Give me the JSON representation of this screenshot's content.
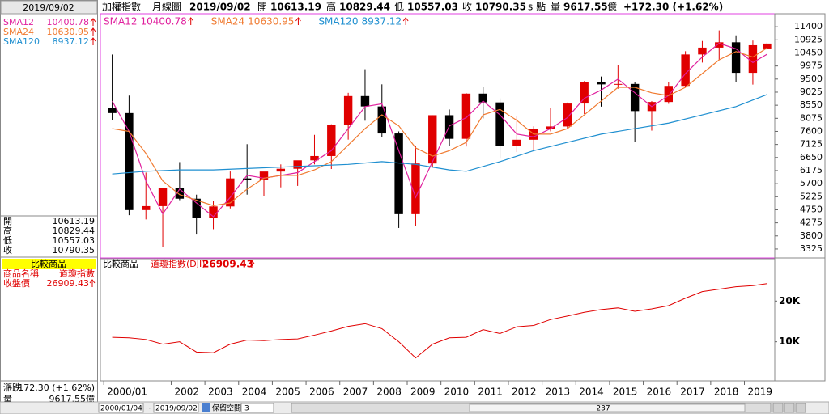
{
  "header": {
    "product": "加權指數",
    "period": "月線圖",
    "date": "2019/09/02",
    "open_label": "開",
    "open": 10613.19,
    "high_label": "高",
    "high": 10829.44,
    "low_label": "低",
    "low": 10557.03,
    "close_label": "收",
    "close": 10790.35,
    "unit": "s 點",
    "volume_label": "量",
    "volume": 9617.55,
    "volume_unit": "億",
    "change": "+172.30 (+1.62%)"
  },
  "sidebar": {
    "change_label": "漲跌",
    "change": "172.30 (+1.62%)",
    "volume_text": "9617.55億",
    "compare_title": "比較商品",
    "name_label": "商品名稱",
    "name": "道瓊指數",
    "close_label": "收盤價"
  },
  "statusbar": {
    "start": "2000/01/04",
    "sep": "~",
    "end": "2019/09/02",
    "reserve_label": "保留空間",
    "reserve": 3,
    "count": 237
  },
  "chart_data": [
    {
      "type": "candlestick",
      "x": [
        2000.25,
        2000.75,
        2001.25,
        2001.75,
        2002.25,
        2002.75,
        2003.25,
        2003.75,
        2004.25,
        2004.75,
        2005.25,
        2005.75,
        2006.25,
        2006.75,
        2007.25,
        2007.75,
        2008.25,
        2008.75,
        2009.25,
        2009.75,
        2010.25,
        2010.75,
        2011.25,
        2011.75,
        2012.25,
        2012.75,
        2013.25,
        2013.75,
        2014.25,
        2014.75,
        2015.25,
        2015.75,
        2016.25,
        2016.75,
        2017.25,
        2017.75,
        2018.25,
        2018.75,
        2019.25,
        2019.67
      ],
      "open": [
        8448,
        8265,
        4739,
        4883,
        5551,
        5153,
        4452,
        4872,
        5890,
        5840,
        6140,
        6241,
        6548,
        6704,
        7823,
        8883,
        8506,
        7524,
        4591,
        6432,
        8188,
        7330,
        8972,
        8652,
        7072,
        7296,
        7699,
        7778,
        8611,
        9393,
        9307,
        9323,
        8338,
        8667,
        9253,
        10395,
        10643,
        10837,
        9727,
        10613.19
      ],
      "high": [
        10393,
        8900,
        6104,
        5551,
        6484,
        5300,
        5080,
        6142,
        7135,
        6100,
        6400,
        6540,
        7474,
        7858,
        9000,
        9859,
        9309,
        7600,
        7084,
        8188,
        8395,
        8990,
        9220,
        8800,
        8170,
        7782,
        8440,
        8647,
        9427,
        9593,
        10014,
        9400,
        8700,
        9400,
        10513,
        10884,
        11270,
        11089,
        10900,
        10829.44
      ],
      "low": [
        8000,
        4555,
        4400,
        3411,
        5100,
        3850,
        4044,
        4800,
        5300,
        5255,
        5565,
        5618,
        6400,
        6232,
        7300,
        7987,
        7384,
        4089,
        4164,
        6300,
        7080,
        7050,
        8070,
        6609,
        6850,
        6900,
        7600,
        7700,
        8230,
        8500,
        9150,
        7203,
        7627,
        8600,
        9200,
        10100,
        10189,
        9400,
        9300,
        10557.03
      ],
      "close": [
        8265,
        4739,
        4883,
        5551,
        5153,
        4452,
        4872,
        5890,
        5840,
        6140,
        6241,
        6548,
        6704,
        7823,
        8883,
        8506,
        7524,
        4591,
        6432,
        8188,
        7330,
        8972,
        8652,
        7072,
        7296,
        7699,
        7778,
        8611,
        9393,
        9307,
        9323,
        8338,
        8667,
        9253,
        10395,
        10643,
        10837,
        9727,
        10730,
        10790.35
      ],
      "up_color": "#e00000",
      "down_color": "#000000",
      "overlays": [
        {
          "name": "SMA12",
          "color": "#e0209e",
          "values": [
            8700,
            7600,
            5800,
            4600,
            5500,
            5000,
            4500,
            5200,
            6000,
            5900,
            6000,
            6100,
            6500,
            6900,
            7700,
            8500,
            8600,
            6900,
            5200,
            6500,
            7800,
            8100,
            8700,
            8200,
            7500,
            7400,
            7700,
            8100,
            8800,
            9100,
            9500,
            9000,
            8500,
            8900,
            9700,
            10300,
            10800,
            10600,
            10100,
            10400.78
          ]
        },
        {
          "name": "SMA24",
          "color": "#f07a30",
          "values": [
            7700,
            7600,
            6800,
            5800,
            5300,
            5100,
            4900,
            5000,
            5500,
            5900,
            6000,
            6000,
            6200,
            6500,
            7100,
            7700,
            8200,
            7800,
            7000,
            6700,
            6900,
            7200,
            8200,
            8400,
            8000,
            7500,
            7500,
            7700,
            8200,
            8700,
            9200,
            9200,
            9000,
            8900,
            9200,
            9700,
            10200,
            10500,
            10300,
            10630.95
          ]
        },
        {
          "name": "SMA120",
          "color": "#1f8fd0",
          "x": [
            2000.25,
            2001.25,
            2002.25,
            2003.25,
            2004.25,
            2005.25,
            2006.25,
            2007.25,
            2008.25,
            2009.25,
            2010.25,
            2010.75,
            2011.75,
            2012.75,
            2013.75,
            2014.75,
            2015.75,
            2016.75,
            2017.75,
            2018.75,
            2019.67
          ],
          "values": [
            6050,
            6150,
            6200,
            6200,
            6250,
            6300,
            6350,
            6400,
            6500,
            6400,
            6200,
            6150,
            6500,
            6900,
            7200,
            7500,
            7700,
            7900,
            8200,
            8500,
            8937.12
          ]
        }
      ],
      "xlim": [
        1999.9,
        2019.9
      ],
      "xticks": [
        {
          "value": 2000,
          "label": "2000/01"
        },
        2002,
        2003,
        2004,
        2005,
        2006,
        2007,
        2008,
        2009,
        2010,
        2011,
        2012,
        2013,
        2014,
        2015,
        2016,
        2017,
        2018,
        2019
      ],
      "ylim": [
        3000,
        11875
      ],
      "yticks": [
        3325,
        3800,
        4275,
        4750,
        5225,
        5700,
        6175,
        6650,
        7125,
        7600,
        8075,
        8550,
        9025,
        9500,
        9975,
        10450,
        10925,
        11400
      ]
    },
    {
      "type": "line",
      "title": "比較商品",
      "series": [
        {
          "name": "道瓊指數(DJI)",
          "color": "#e00000",
          "x": [
            2000.25,
            2000.75,
            2001.25,
            2001.75,
            2002.25,
            2002.75,
            2003.25,
            2003.75,
            2004.25,
            2004.75,
            2005.25,
            2005.75,
            2006.25,
            2006.75,
            2007.25,
            2007.75,
            2008.25,
            2008.75,
            2009.25,
            2009.75,
            2010.25,
            2010.75,
            2011.25,
            2011.75,
            2012.25,
            2012.75,
            2013.25,
            2013.75,
            2014.25,
            2014.75,
            2015.25,
            2015.75,
            2016.25,
            2016.75,
            2017.25,
            2017.75,
            2018.25,
            2018.75,
            2019.25,
            2019.67
          ],
          "values": [
            10800,
            10700,
            10400,
            9600,
            10000,
            8400,
            8300,
            9600,
            10300,
            10200,
            10400,
            10500,
            11200,
            12000,
            13000,
            13600,
            12500,
            10000,
            7600,
            9600,
            10700,
            10800,
            12300,
            11500,
            12900,
            13200,
            14600,
            15500,
            16500,
            17300,
            17800,
            16800,
            17500,
            18500,
            21000,
            23500,
            24500,
            25500,
            26000,
            26909.43
          ]
        }
      ],
      "log": true,
      "xlim": [
        1999.9,
        2019.9
      ],
      "ylim": [
        5140,
        41100
      ],
      "yticks": [
        {
          "value": 10000,
          "label": "10K"
        },
        {
          "value": 20000,
          "label": "20K"
        }
      ]
    }
  ]
}
